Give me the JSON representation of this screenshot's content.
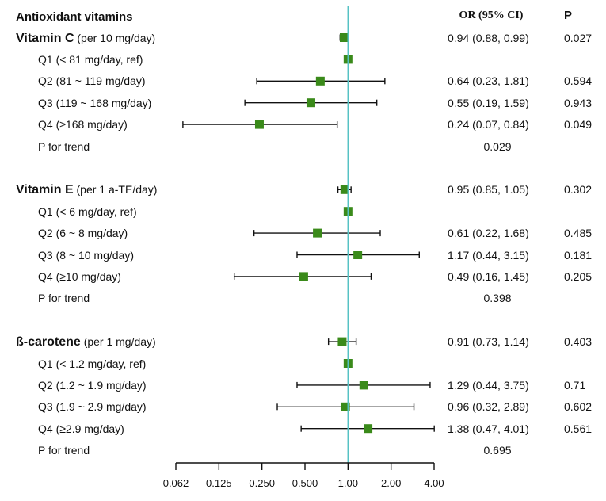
{
  "headers": {
    "title": "Antioxidant vitamins",
    "or": "OR (95% CI)",
    "p": "P"
  },
  "groups": [
    {
      "name": "Vitamin C",
      "unit": "(per 10 mg/day)",
      "or": 0.94,
      "lo": 0.88,
      "hi": 0.99,
      "or_text": "0.94 (0.88, 0.99)",
      "p": "0.027",
      "rows": [
        {
          "label": "Q1 (< 81 mg/day, ref)",
          "or": 1.0,
          "lo": null,
          "hi": null,
          "or_text": "",
          "p": ""
        },
        {
          "label": "Q2 (81 ~ 119 mg/day)",
          "or": 0.64,
          "lo": 0.23,
          "hi": 1.81,
          "or_text": "0.64 (0.23, 1.81)",
          "p": "0.594"
        },
        {
          "label": "Q3 (119 ~ 168 mg/day)",
          "or": 0.55,
          "lo": 0.19,
          "hi": 1.59,
          "or_text": "0.55 (0.19, 1.59)",
          "p": "0.943"
        },
        {
          "label": "Q4 (≥168 mg/day)",
          "or": 0.24,
          "lo": 0.07,
          "hi": 0.84,
          "or_text": "0.24 (0.07, 0.84)",
          "p": "0.049"
        }
      ],
      "trend_label": "P for trend",
      "trend_p": "0.029"
    },
    {
      "name": "Vitamin E",
      "unit": "(per 1 a-TE/day)",
      "or": 0.95,
      "lo": 0.85,
      "hi": 1.05,
      "or_text": "0.95 (0.85, 1.05)",
      "p": "0.302",
      "rows": [
        {
          "label": "Q1 (< 6 mg/day, ref)",
          "or": 1.0,
          "lo": null,
          "hi": null,
          "or_text": "",
          "p": ""
        },
        {
          "label": "Q2 (6 ~ 8 mg/day)",
          "or": 0.61,
          "lo": 0.22,
          "hi": 1.68,
          "or_text": "0.61 (0.22, 1.68)",
          "p": "0.485"
        },
        {
          "label": "Q3 (8 ~ 10 mg/day)",
          "or": 1.17,
          "lo": 0.44,
          "hi": 3.15,
          "or_text": "1.17 (0.44, 3.15)",
          "p": "0.181"
        },
        {
          "label": "Q4 (≥10 mg/day)",
          "or": 0.49,
          "lo": 0.16,
          "hi": 1.45,
          "or_text": "0.49 (0.16, 1.45)",
          "p": "0.205"
        }
      ],
      "trend_label": "P for trend",
      "trend_p": "0.398"
    },
    {
      "name": "ß-carotene",
      "unit": "(per 1 mg/day)",
      "or": 0.91,
      "lo": 0.73,
      "hi": 1.14,
      "or_text": "0.91 (0.73, 1.14)",
      "p": "0.403",
      "rows": [
        {
          "label": "Q1 (< 1.2 mg/day, ref)",
          "or": 1.0,
          "lo": null,
          "hi": null,
          "or_text": "",
          "p": ""
        },
        {
          "label": "Q2 (1.2 ~ 1.9 mg/day)",
          "or": 1.29,
          "lo": 0.44,
          "hi": 3.75,
          "or_text": "1.29 (0.44, 3.75)",
          "p": "0.71"
        },
        {
          "label": "Q3 (1.9 ~ 2.9 mg/day)",
          "or": 0.96,
          "lo": 0.32,
          "hi": 2.89,
          "or_text": "0.96 (0.32, 2.89)",
          "p": "0.602"
        },
        {
          "label": "Q4 (≥2.9 mg/day)",
          "or": 1.38,
          "lo": 0.47,
          "hi": 4.01,
          "or_text": "1.38 (0.47, 4.01)",
          "p": "0.561"
        }
      ],
      "trend_label": "P for trend",
      "trend_p": "0.695"
    }
  ],
  "chart_data": {
    "type": "scatter",
    "subtype": "forest-plot",
    "x_scale": "log2",
    "xlim": [
      0.062,
      4.0
    ],
    "reference_line": 1.0,
    "ticks": [
      "0.062",
      "0.125",
      "0.250",
      "0.500",
      "1.00",
      "2.00",
      "4.00"
    ],
    "tick_values": [
      0.0625,
      0.125,
      0.25,
      0.5,
      1.0,
      2.0,
      4.0
    ],
    "marker_color": "#3a8a1a",
    "ref_line_color": "#55c2c4"
  }
}
